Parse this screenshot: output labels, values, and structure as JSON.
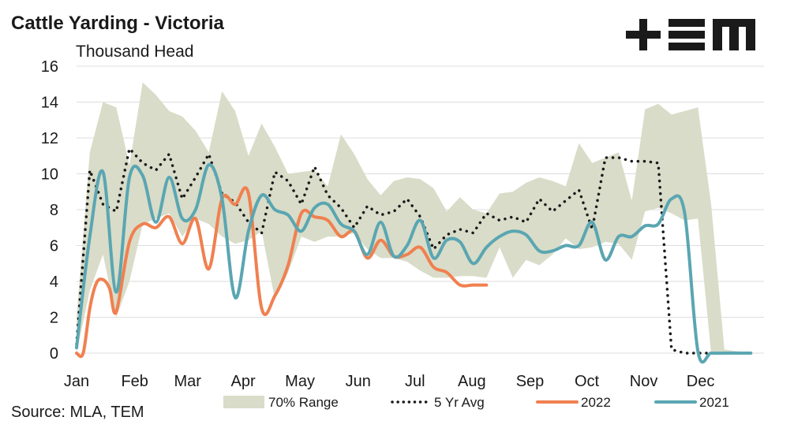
{
  "header": {
    "title": "Cattle Yarding - Victoria",
    "logo": "+EM",
    "unit": "Thousand Head",
    "source": "Source: MLA, TEM"
  },
  "colors": {
    "range_fill": "#d9dcc8",
    "avg": "#1a1a1a",
    "y2022": "#f08050",
    "y2021": "#5aa6b2",
    "grid": "#dddddd"
  },
  "chart_data": {
    "type": "line",
    "title": "Cattle Yarding - Victoria",
    "ylabel": "Thousand Head",
    "xlabel": "",
    "ylim": [
      0,
      16
    ],
    "yticks": [
      0,
      2,
      4,
      6,
      8,
      10,
      12,
      14,
      16
    ],
    "xlim": [
      0,
      52
    ],
    "x_unit": "week of year",
    "categories": [
      "Jan",
      "Feb",
      "Mar",
      "Apr",
      "May",
      "Jun",
      "Jul",
      "Aug",
      "Sep",
      "Oct",
      "Nov",
      "Dec"
    ],
    "category_positions": [
      0,
      4.4,
      8.4,
      12.6,
      16.9,
      21.3,
      25.6,
      29.9,
      34.3,
      38.6,
      42.9,
      47.2
    ],
    "grid": "horizontal",
    "legend": "bottom",
    "range": {
      "name": "70% Range",
      "x": [
        0,
        1,
        2,
        3,
        4,
        5,
        6,
        7,
        8,
        9,
        10,
        11,
        12,
        13,
        14,
        15,
        16,
        17,
        18,
        19,
        20,
        21,
        22,
        23,
        24,
        25,
        26,
        27,
        28,
        29,
        30,
        31,
        32,
        33,
        34,
        35,
        36,
        37,
        38,
        39,
        40,
        41,
        42,
        43,
        44,
        45,
        46,
        47,
        48,
        49,
        50,
        51
      ],
      "upper": [
        2,
        11.2,
        14,
        13.7,
        10.5,
        15.1,
        14.4,
        13.5,
        13.2,
        12.4,
        11.2,
        14.6,
        13.5,
        11,
        12.8,
        11.5,
        10,
        10.1,
        10.2,
        9.3,
        12.2,
        11.1,
        9.7,
        8.8,
        9.6,
        9.8,
        9.7,
        9.2,
        7.9,
        8.7,
        8,
        7.8,
        8.9,
        9,
        9.5,
        9.8,
        9.6,
        9.3,
        11.7,
        10.6,
        10.9,
        11.2,
        8.5,
        13.6,
        13.9,
        13.3,
        13.5,
        13.7,
        8.3,
        0.2,
        0.1,
        0
      ],
      "lower": [
        0,
        3.5,
        5.5,
        2,
        4,
        7.2,
        7.5,
        7.8,
        6.5,
        7.5,
        7.2,
        6.5,
        6.1,
        6.3,
        6.8,
        3,
        4.5,
        6.5,
        6.2,
        6.5,
        6.5,
        6.7,
        5.8,
        5.3,
        5.3,
        5.1,
        4.6,
        4.2,
        4.2,
        4.3,
        4.3,
        4.2,
        5.9,
        4.2,
        5.2,
        4.9,
        5.5,
        6.4,
        5.8,
        5.9,
        6.2,
        6.1,
        5.2,
        7.9,
        8.1,
        7.8,
        7.4,
        7.5,
        0,
        0,
        0,
        0
      ]
    },
    "series": [
      {
        "name": "5 Yr Avg",
        "style": "dotted",
        "x": [
          0,
          1,
          2,
          3,
          4,
          5,
          6,
          7,
          8,
          9,
          10,
          11,
          12,
          13,
          14,
          15,
          16,
          17,
          18,
          19,
          20,
          21,
          22,
          23,
          24,
          25,
          26,
          27,
          28,
          29,
          30,
          31,
          32,
          33,
          34,
          35,
          36,
          37,
          38,
          39,
          40,
          41,
          42,
          43,
          44,
          45,
          46,
          47,
          48,
          49,
          50,
          51
        ],
        "values": [
          0.5,
          10.2,
          8.3,
          7.9,
          11.4,
          10.6,
          10.2,
          11.1,
          8.6,
          9.8,
          11.1,
          8.9,
          8.4,
          7.3,
          6.7,
          10.1,
          9.6,
          8.3,
          10.4,
          8.8,
          8.1,
          7,
          8.2,
          7.7,
          7.9,
          8.6,
          7.6,
          5.8,
          6.6,
          6.9,
          6.7,
          7.8,
          7.4,
          7.6,
          7.3,
          8.6,
          7.9,
          8.5,
          9.1,
          6.9,
          10.9,
          10.9,
          10.7,
          10.7,
          10.6,
          0.2,
          0,
          0,
          0,
          0,
          0,
          0
        ]
      },
      {
        "name": "2022",
        "style": "solid",
        "x": [
          0,
          0.5,
          1,
          1.5,
          2,
          2.5,
          3,
          4,
          5,
          6,
          7,
          8,
          9,
          10,
          11,
          12,
          13,
          14,
          15,
          16,
          17,
          18,
          19,
          20,
          21,
          22,
          23,
          24,
          25,
          26,
          27,
          28,
          29,
          30,
          31
        ],
        "values": [
          0,
          0,
          2.5,
          3.9,
          4.1,
          3.6,
          2.3,
          6.2,
          7.2,
          7,
          7.6,
          6.1,
          7.5,
          4.7,
          8.6,
          8.3,
          8.9,
          2.5,
          3.2,
          4.9,
          7.8,
          7.6,
          7.4,
          6.5,
          6.8,
          5.3,
          6.3,
          5.4,
          5.5,
          5.9,
          4.8,
          4.5,
          3.8,
          3.8,
          3.8
        ]
      },
      {
        "name": "2021",
        "style": "solid",
        "x": [
          0,
          1,
          2,
          3,
          4,
          5,
          6,
          7,
          8,
          9,
          10,
          11,
          12,
          13,
          14,
          15,
          16,
          17,
          18,
          19,
          20,
          21,
          22,
          23,
          24,
          25,
          26,
          27,
          28,
          29,
          30,
          31,
          32,
          33,
          34,
          35,
          36,
          37,
          38,
          39,
          40,
          41,
          42,
          43,
          44,
          45,
          46,
          47,
          48,
          49,
          50,
          51
        ],
        "values": [
          0.3,
          6.5,
          10.1,
          3.4,
          9.8,
          9.9,
          7.3,
          9.8,
          7.5,
          8,
          10.5,
          8.6,
          3.1,
          6.8,
          8.8,
          8,
          7.7,
          6.8,
          8.1,
          8.3,
          7.2,
          6.8,
          5.5,
          7.3,
          5.4,
          6,
          7.4,
          5.3,
          6.3,
          6.2,
          5,
          5.9,
          6.5,
          6.8,
          6.6,
          5.7,
          5.7,
          6,
          6,
          7.3,
          5.2,
          6.5,
          6.5,
          7.1,
          7.2,
          8.6,
          7.8,
          0.1,
          0,
          0,
          0,
          0
        ]
      }
    ]
  }
}
